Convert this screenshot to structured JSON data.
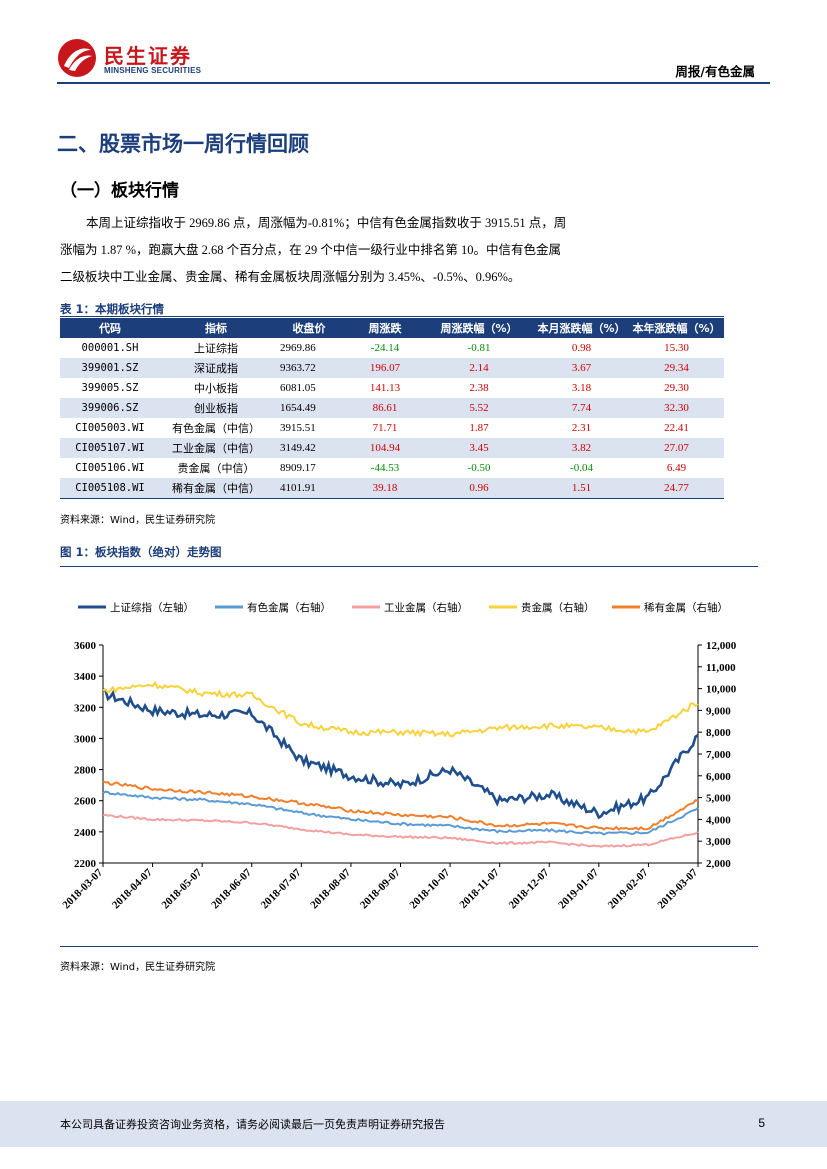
{
  "header": {
    "brand_cn": "民生证券",
    "brand_en": "MINSHENG SECURITIES",
    "doc_type": "周报/有色金属"
  },
  "section_title": "二、股票市场一周行情回顾",
  "subsection_title": "（一）板块行情",
  "paragraph": {
    "line1": "本周上证综指收于 2969.86 点，周涨幅为-0.81%；中信有色金属指数收于 3915.51 点，周",
    "line2": "涨幅为 1.87 %，跑赢大盘 2.68 个百分点，在 29 个中信一级行业中排名第 10。中信有色金属",
    "line3": "二级板块中工业金属、贵金属、稀有金属板块周涨幅分别为 3.45%、-0.5%、0.96%。"
  },
  "table": {
    "caption": "表 1：本期板块行情",
    "headers": [
      "代码",
      "指标",
      "收盘价",
      "周涨跌",
      "周涨跌幅（%）",
      "本月涨跌幅（%）",
      "本年涨跌幅（%）"
    ],
    "rows": [
      [
        "000001.SH",
        "上证综指",
        "2969.86",
        "-24.14",
        "-0.81",
        "0.98",
        "15.30"
      ],
      [
        "399001.SZ",
        "深证成指",
        "9363.72",
        "196.07",
        "2.14",
        "3.67",
        "29.34"
      ],
      [
        "399005.SZ",
        "中小板指",
        "6081.05",
        "141.13",
        "2.38",
        "3.18",
        "29.30"
      ],
      [
        "399006.SZ",
        "创业板指",
        "1654.49",
        "86.61",
        "5.52",
        "7.74",
        "32.30"
      ],
      [
        "CI005003.WI",
        "有色金属（中信）",
        "3915.51",
        "71.71",
        "1.87",
        "2.31",
        "22.41"
      ],
      [
        "CI005107.WI",
        "工业金属（中信）",
        "3149.42",
        "104.94",
        "3.45",
        "3.82",
        "27.07"
      ],
      [
        "CI005106.WI",
        "贵金属（中信）",
        "8909.17",
        "-44.53",
        "-0.50",
        "-0.04",
        "6.49"
      ],
      [
        "CI005108.WI",
        "稀有金属（中信）",
        "4101.91",
        "39.18",
        "0.96",
        "1.51",
        "24.77"
      ]
    ],
    "source": "资料来源：Wind，民生证券研究院"
  },
  "figure": {
    "caption": "图 1：板块指数（绝对）走势图",
    "source": "资料来源：Wind，民生证券研究院"
  },
  "chart_data": {
    "type": "line",
    "legend_position": "top",
    "x": [
      "2018-03-07",
      "2018-04-07",
      "2018-05-07",
      "2018-06-07",
      "2018-07-07",
      "2018-08-07",
      "2018-09-07",
      "2018-10-07",
      "2018-11-07",
      "2018-12-07",
      "2019-01-07",
      "2019-02-07",
      "2019-03-07"
    ],
    "y_left": {
      "ylim": [
        2200,
        3600
      ],
      "ticks": [
        "2200",
        "2400",
        "2600",
        "2800",
        "3000",
        "3200",
        "3400",
        "3600"
      ]
    },
    "y_right": {
      "ylim": [
        2000,
        12000
      ],
      "ticks": [
        "2,000",
        "3,000",
        "4,000",
        "5,000",
        "6,000",
        "7,000",
        "8,000",
        "9,000",
        "10,000",
        "11,000",
        "12,000"
      ]
    },
    "series": [
      {
        "name": "上证综指（左轴）",
        "axis": "left",
        "color": "#1f4e8c",
        "values": [
          3290,
          3180,
          3150,
          3160,
          2860,
          2760,
          2700,
          2800,
          2600,
          2640,
          2520,
          2620,
          3020
        ]
      },
      {
        "name": "有色金属（右轴）",
        "axis": "right",
        "color": "#5b9bd5",
        "values": [
          5250,
          5000,
          4900,
          4700,
          4300,
          4000,
          3800,
          3700,
          3450,
          3500,
          3350,
          3400,
          4500
        ]
      },
      {
        "name": "工业金属（右轴）",
        "axis": "right",
        "color": "#f4a0a0",
        "values": [
          4200,
          4000,
          3950,
          3850,
          3550,
          3300,
          3200,
          3150,
          2900,
          2950,
          2750,
          2850,
          3400
        ]
      },
      {
        "name": "贵金属（右轴）",
        "axis": "right",
        "color": "#f7d23a",
        "values": [
          9900,
          10200,
          9800,
          9700,
          8400,
          8000,
          8000,
          7900,
          8200,
          8300,
          8200,
          8000,
          9400
        ]
      },
      {
        "name": "稀有金属（右轴）",
        "axis": "right",
        "color": "#f07f2c",
        "values": [
          5700,
          5400,
          5250,
          5050,
          4750,
          4400,
          4200,
          4100,
          3700,
          3800,
          3600,
          3600,
          4900
        ]
      }
    ]
  },
  "footer": {
    "disclaimer": "本公司具备证券投资咨询业务资格，请务必阅读最后一页免责声明证券研究报告",
    "page": "5"
  },
  "colors": {
    "brand_red": "#c8161d",
    "brand_blue": "#1c3f7c",
    "table_alt": "#dbe2f0"
  }
}
